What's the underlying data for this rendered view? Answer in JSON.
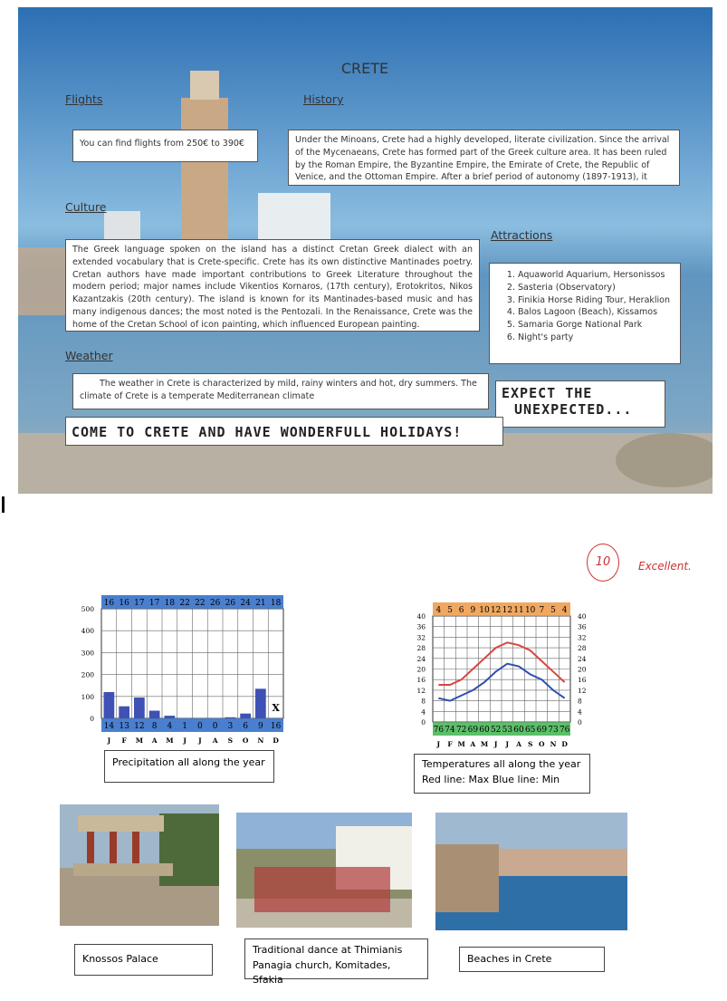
{
  "header": {
    "title": "CRETE"
  },
  "sections": {
    "flights": {
      "heading": "Flights",
      "text": "You can find flights from 250€ to 390€"
    },
    "history": {
      "heading": "History",
      "text": "Under the Minoans, Crete had a highly developed, literate civilization. Since the arrival of the Mycenaeans, Crete has formed part of the Greek culture area. It has been ruled by the Roman Empire, the Byzantine Empire, the Emirate of Crete, the Republic of Venice, and the Ottoman Empire. After a brief period of autonomy (1897-1913), it joined the Kingdom of"
    },
    "culture": {
      "heading": "Culture",
      "text": "The Greek language spoken on the island has a distinct Cretan Greek dialect with an extended vocabulary that is Crete-specific. Crete has its own distinctive Mantinades poetry. Cretan authors have made important contributions to Greek Literature throughout the modern period; major names include Vikentios Kornaros, (17th century), Erotokritos, Nikos Kazantzakis (20th century). The island is known for its Mantinades-based music and has many indigenous dances; the most noted is the Pentozali. In the Renaissance, Crete was the home of the Cretan School of icon painting, which influenced European painting."
    },
    "attractions": {
      "heading": "Attractions",
      "items": [
        "Aquaworld Aquarium, Hersonissos",
        "Sasteria (Observatory)",
        "Finikia Horse Riding Tour, Heraklion",
        "Balos Lagoon (Beach), Kissamos",
        "Samaria Gorge National Park",
        "Night's party"
      ]
    },
    "weather": {
      "heading": "Weather",
      "text": "The weather in Crete is characterized by mild, rainy winters and hot, dry summers. The climate of Crete is a temperate Mediterranean climate"
    }
  },
  "expect": [
    "EXPECT THE",
    "UNEXPECTED..."
  ],
  "slogan": "COME TO CRETE AND HAVE WONDERFULL HOLIDAYS!",
  "grade": {
    "score": "10",
    "comment": "Excellent."
  },
  "charts": [
    {
      "type": "bar",
      "color": "#3f51b5",
      "categories": [
        "J",
        "F",
        "M",
        "A",
        "M",
        "J",
        "J",
        "A",
        "S",
        "O",
        "N",
        "D"
      ],
      "values": [
        120,
        55,
        95,
        35,
        12,
        2,
        1,
        2,
        5,
        22,
        135,
        null
      ],
      "note_label": "X",
      "ylim": [
        0,
        500
      ],
      "yticks": [
        0,
        100,
        200,
        300,
        400,
        500
      ],
      "top_row": [
        16,
        16,
        17,
        17,
        18,
        22,
        22,
        26,
        26,
        24,
        21,
        18
      ],
      "bottom_row": [
        14,
        13,
        12,
        8,
        4,
        1,
        0,
        0,
        3,
        6,
        9,
        16
      ],
      "caption": [
        "Precipitation all along the year"
      ]
    },
    {
      "type": "line",
      "categories": [
        "J",
        "F",
        "M",
        "A",
        "M",
        "J",
        "J",
        "A",
        "S",
        "O",
        "N",
        "D"
      ],
      "series": [
        {
          "color": "#d9453f",
          "values": [
            14,
            14,
            16,
            20,
            24,
            28,
            30,
            29,
            27,
            23,
            19,
            15
          ]
        },
        {
          "color": "#2f4fb0",
          "values": [
            9,
            8,
            10,
            12,
            15,
            19,
            22,
            21,
            18,
            16,
            12,
            9
          ]
        }
      ],
      "ylim": [
        0,
        40
      ],
      "yticks": [
        0,
        4,
        8,
        12,
        16,
        20,
        24,
        28,
        32,
        36,
        40
      ],
      "top_row": [
        4,
        5,
        6,
        9,
        10,
        12,
        12,
        11,
        10,
        7,
        5,
        4
      ],
      "bottom_row": [
        76,
        74,
        72,
        69,
        60,
        52,
        53,
        60,
        65,
        69,
        73,
        76
      ],
      "caption": [
        "Temperatures all along the year",
        "Red line: Max   Blue line: Min"
      ]
    }
  ],
  "photos": [
    {
      "caption": [
        "Knossos Palace"
      ]
    },
    {
      "caption": [
        "Traditional dance at Thimianis",
        "Panagia church, Komitades, Sfakia"
      ]
    },
    {
      "caption": [
        "Beaches in Crete"
      ]
    }
  ]
}
